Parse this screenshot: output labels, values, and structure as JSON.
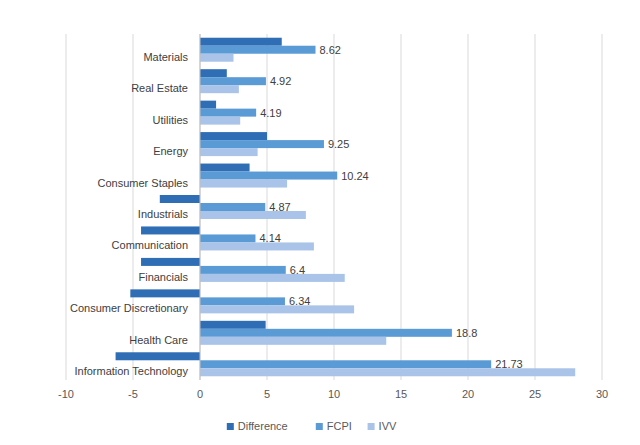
{
  "chart_data": {
    "type": "bar",
    "orientation": "horizontal",
    "grid": true,
    "legend": "bottom",
    "categories": [
      "Materials",
      "Real Estate",
      "Utilities",
      "Energy",
      "Consumer Staples",
      "Industrials",
      "Communication",
      "Financials",
      "Consumer Discretionary",
      "Health Care",
      "Information Technology"
    ],
    "series": [
      {
        "name": "Difference",
        "color": "#2f6eb5",
        "values": [
          6.1,
          2.0,
          1.2,
          5.0,
          3.7,
          -3.0,
          -4.4,
          -4.4,
          -5.2,
          4.9,
          -6.3
        ]
      },
      {
        "name": "FCPI",
        "color": "#5b9bd5",
        "data_labels": true,
        "values": [
          8.62,
          4.92,
          4.19,
          9.25,
          10.24,
          4.87,
          4.14,
          6.4,
          6.34,
          18.8,
          21.73
        ]
      },
      {
        "name": "IVV",
        "color": "#a9c4e8",
        "values": [
          2.5,
          2.9,
          3.0,
          4.3,
          6.5,
          7.9,
          8.5,
          10.8,
          11.5,
          13.9,
          28.0
        ]
      }
    ],
    "xlim": [
      -10,
      30
    ],
    "xticks": [
      -10,
      -5,
      0,
      5,
      10,
      15,
      20,
      25,
      30
    ]
  }
}
